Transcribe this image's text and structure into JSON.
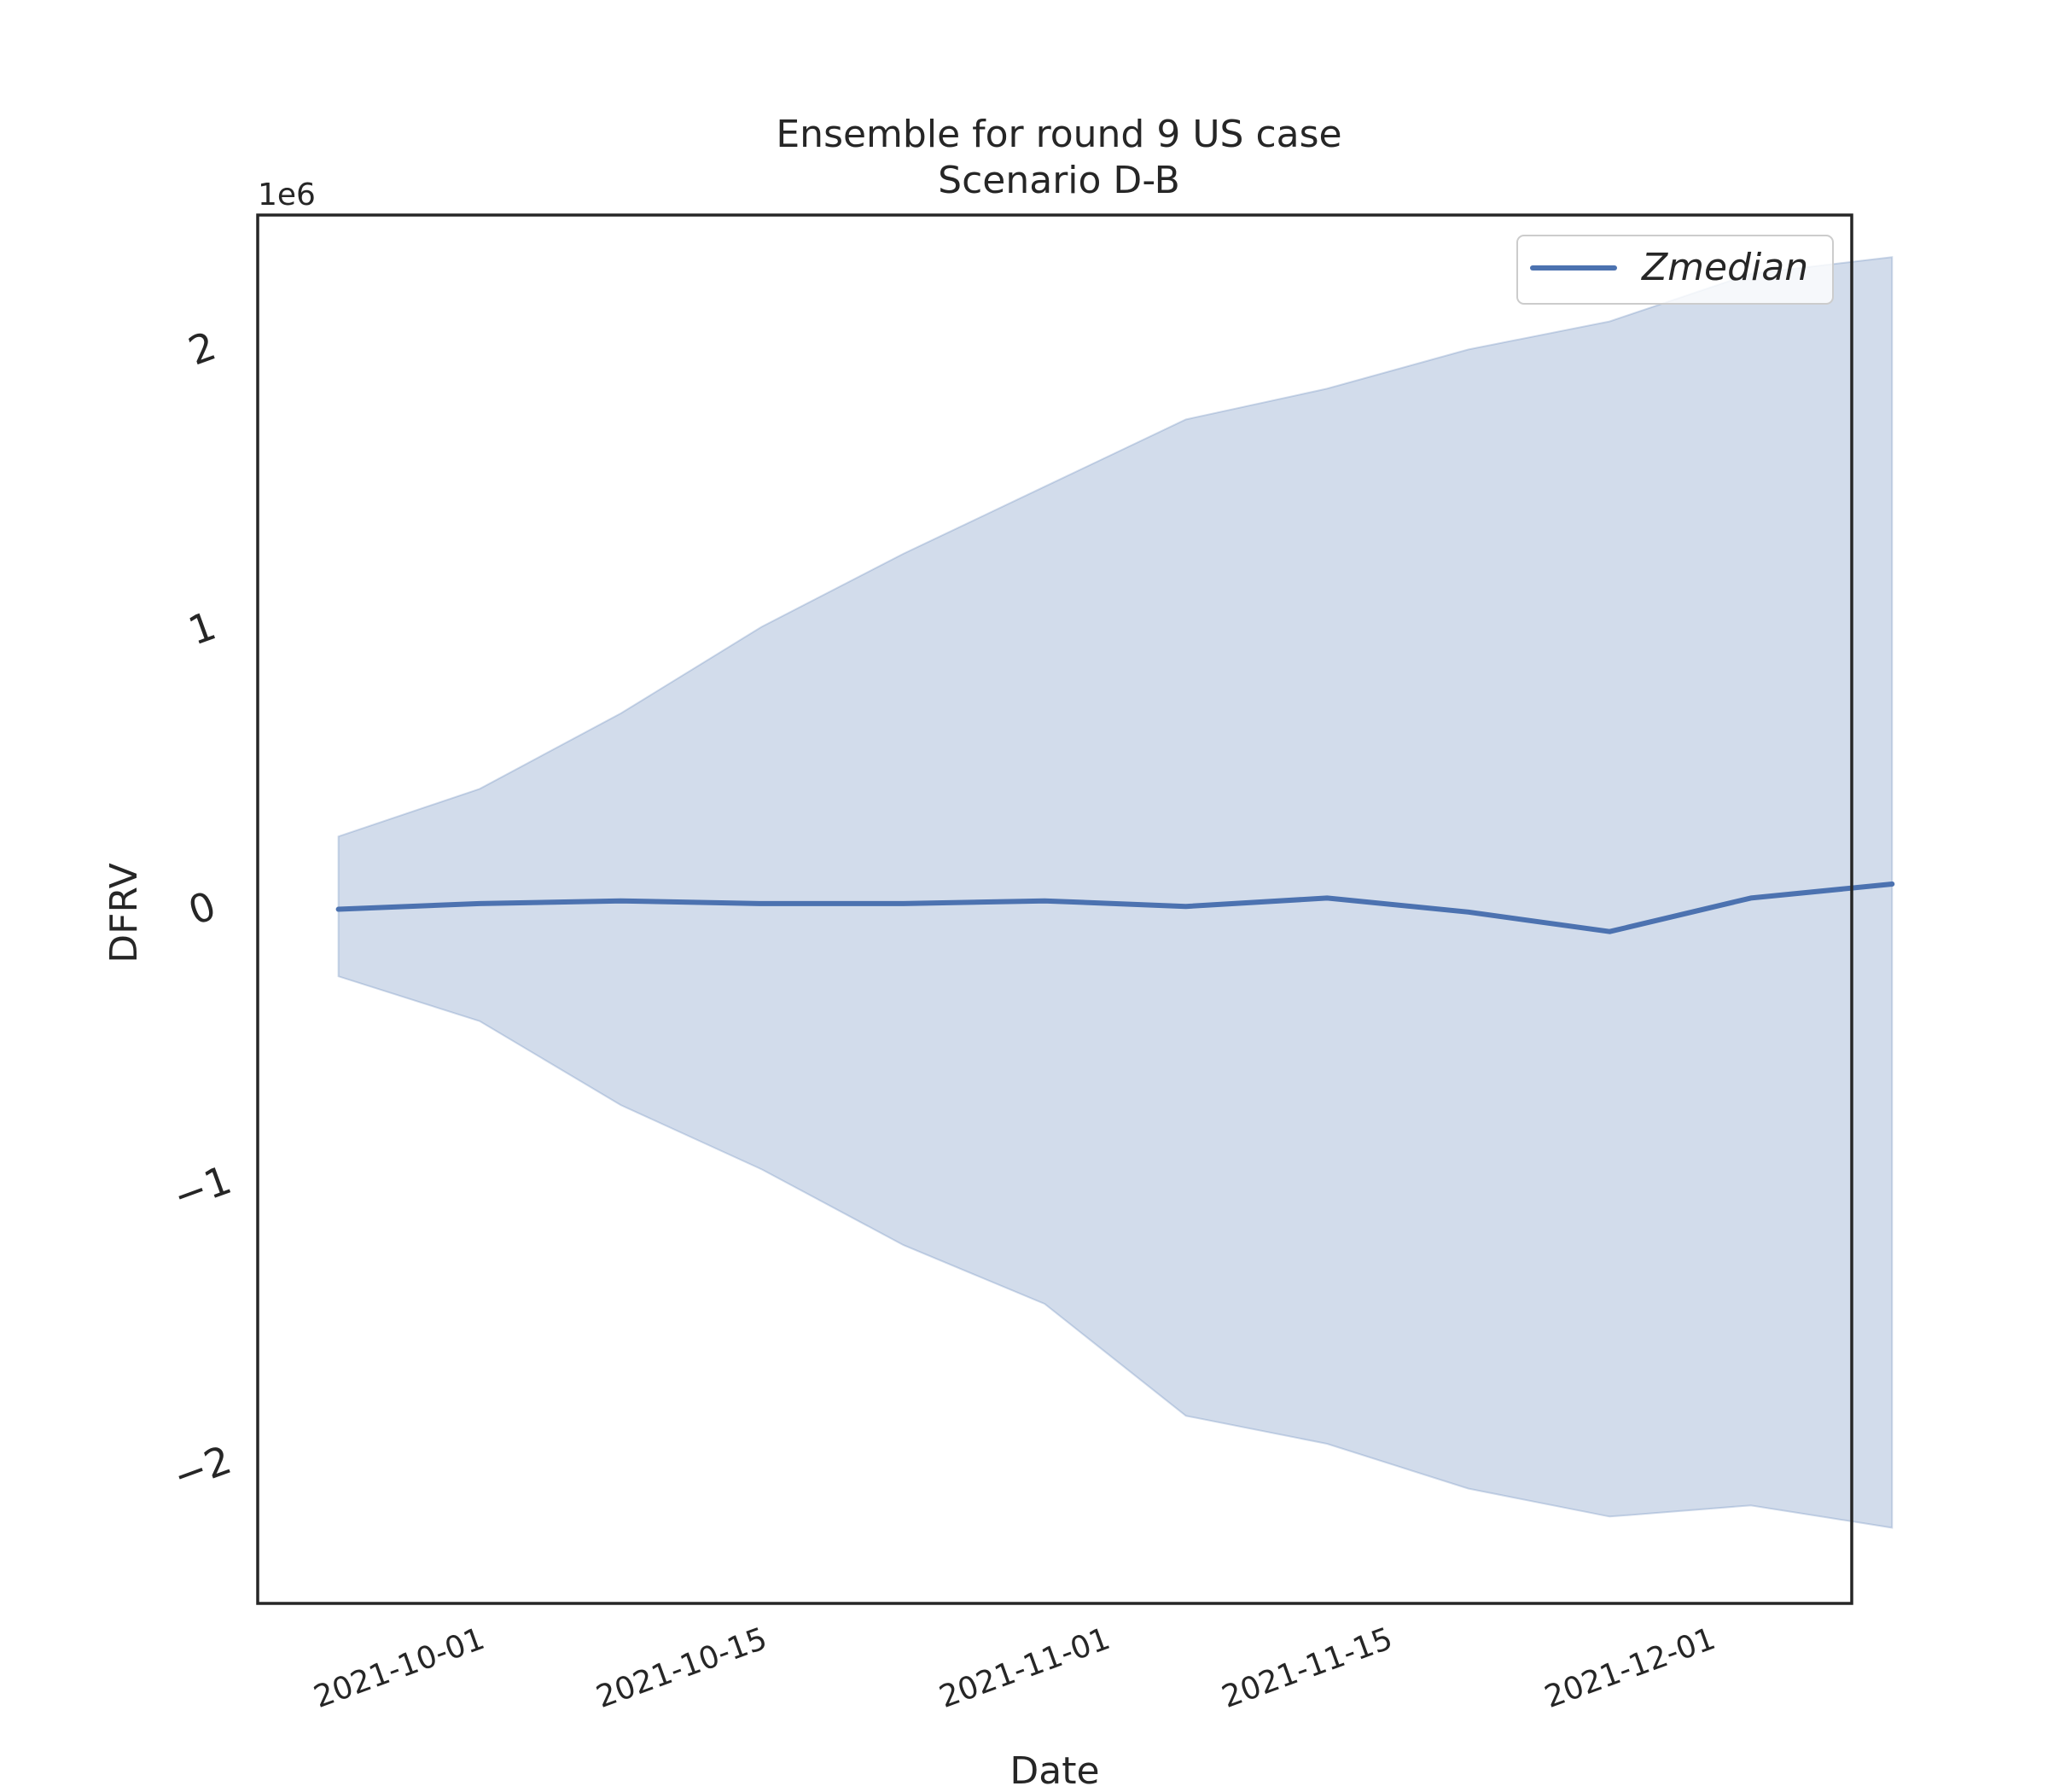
{
  "chart_data": {
    "type": "area",
    "title": "Ensemble for round 9 US case",
    "subtitle": "Scenario D-B",
    "xlabel": "Date",
    "ylabel": "DFRV",
    "y_offset_label": "1e6",
    "y_multiplier": 1000000,
    "xlim": [
      "2021-09-20",
      "2021-12-08"
    ],
    "ylim": [
      -2480000,
      2480000
    ],
    "x_ticks": [
      "2021-10-01",
      "2021-10-15",
      "2021-11-01",
      "2021-11-15",
      "2021-12-01"
    ],
    "y_ticks": [
      -2,
      -1,
      0,
      1,
      2
    ],
    "x": [
      "2021-09-24",
      "2021-10-01",
      "2021-10-08",
      "2021-10-15",
      "2021-10-22",
      "2021-10-29",
      "2021-11-05",
      "2021-11-12",
      "2021-11-19",
      "2021-11-26",
      "2021-12-03",
      "2021-12-10"
    ],
    "series": [
      {
        "name": "Zmedian",
        "color": "#4c72b0",
        "values": [
          0,
          20000,
          30000,
          20000,
          20000,
          30000,
          10000,
          40000,
          -10000,
          -80000,
          40000,
          90000
        ]
      }
    ],
    "band": {
      "color": "#4c72b0",
      "upper": [
        260000,
        430000,
        700000,
        1010000,
        1270000,
        1510000,
        1750000,
        1860000,
        2000000,
        2100000,
        2270000,
        2330000
      ],
      "lower": [
        -240000,
        -400000,
        -700000,
        -930000,
        -1200000,
        -1410000,
        -1810000,
        -1910000,
        -2070000,
        -2170000,
        -2130000,
        -2210000
      ]
    },
    "legend": {
      "position": "top-right",
      "entries": [
        "Zmedian"
      ]
    },
    "grid": false
  }
}
